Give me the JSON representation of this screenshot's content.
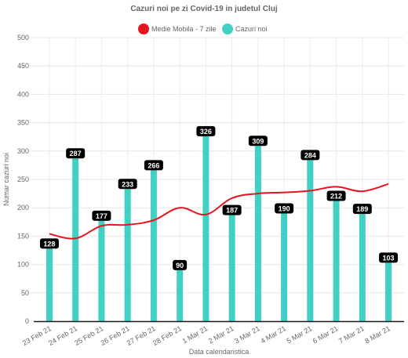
{
  "chart_data": {
    "type": "bar",
    "title": "Cazuri noi pe zi Covid-19 in judetul Cluj",
    "xlabel": "Data calendaristica",
    "ylabel": "Numar cazuri noi",
    "ylim": [
      0,
      500
    ],
    "yticks": [
      0,
      50,
      100,
      150,
      200,
      250,
      300,
      350,
      400,
      450,
      500
    ],
    "categories": [
      "23 Feb 21",
      "24 Feb 21",
      "25 Feb 21",
      "26 Feb 21",
      "27 Feb 21",
      "28 Feb 21",
      "1 Mar 21",
      "2 Mar 21",
      "3 Mar 21",
      "4 Mar 21",
      "5 Mar 21",
      "6 Mar 21",
      "7 Mar 21",
      "8 Mar 21"
    ],
    "grid": true,
    "legend_position": "top",
    "series": [
      {
        "name": "Cazuri noi",
        "type": "bar",
        "color": "#40d0c4",
        "values": [
          128,
          287,
          177,
          233,
          266,
          90,
          326,
          187,
          309,
          190,
          284,
          212,
          189,
          103
        ],
        "data_labels": [
          "128",
          "287",
          "177",
          "233",
          "266",
          "90",
          "326",
          "187",
          "309",
          "190",
          "284",
          "212",
          "189",
          "103"
        ]
      },
      {
        "name": "Medie Mobila - 7 zile",
        "type": "line",
        "color": "#e8141d",
        "values": [
          154,
          146,
          168,
          170,
          178,
          200,
          188,
          217,
          225,
          227,
          230,
          237,
          229,
          242
        ]
      }
    ]
  }
}
